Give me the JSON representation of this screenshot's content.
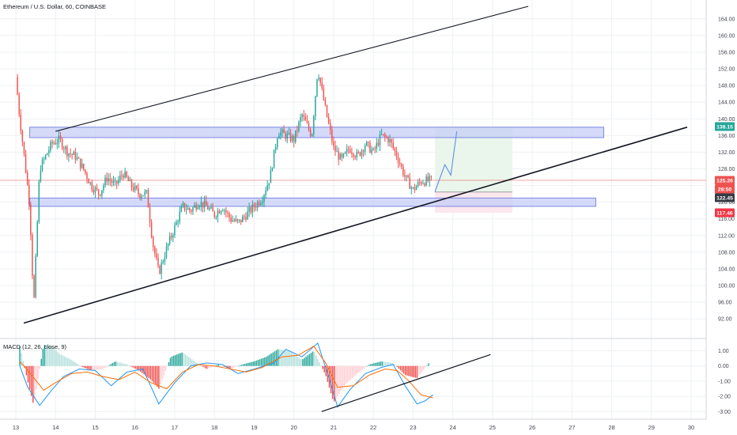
{
  "header": {
    "symbol_line": "Ethereum / U.S. Dollar, 60, COINBASE",
    "macd_label": "MACD (12, 26, close, 9)"
  },
  "chart_data": [
    {
      "type": "candlestick",
      "title": "Ethereum / U.S. Dollar, 60, COINBASE",
      "x_tick_labels": [
        "13",
        "14",
        "15",
        "16",
        "17",
        "18",
        "19",
        "20",
        "21",
        "22",
        "23",
        "24",
        "25",
        "26",
        "27",
        "28",
        "29",
        "30"
      ],
      "y_tick_labels": [
        "92.00",
        "96.00",
        "100.00",
        "104.00",
        "108.00",
        "112.00",
        "116.00",
        "120.00",
        "124.00",
        "128.00",
        "132.00",
        "136.00",
        "140.00",
        "144.00",
        "148.00",
        "152.00",
        "156.00",
        "160.00",
        "164.00"
      ],
      "ylim": [
        89,
        167
      ],
      "grid": true,
      "price_badges": [
        {
          "label": "138.15",
          "value": 138.15,
          "color": "#26a69a"
        },
        {
          "label": "125.26",
          "value": 125.26,
          "color": "#ef5350"
        },
        {
          "label": "28:50",
          "value": 123.9,
          "color": "#ef5350"
        },
        {
          "label": "122.45",
          "value": 122.45,
          "color": "#363a45"
        },
        {
          "label": "117.46",
          "value": 117.46,
          "color": "#f23645"
        }
      ],
      "approx_path": [
        [
          13.0,
          150
        ],
        [
          13.1,
          140
        ],
        [
          13.2,
          132
        ],
        [
          13.35,
          119
        ],
        [
          13.45,
          95
        ],
        [
          13.6,
          128
        ],
        [
          13.75,
          131
        ],
        [
          13.9,
          134
        ],
        [
          14.1,
          135
        ],
        [
          14.3,
          132
        ],
        [
          14.5,
          131
        ],
        [
          14.7,
          128
        ],
        [
          14.9,
          124
        ],
        [
          15.1,
          122
        ],
        [
          15.3,
          126
        ],
        [
          15.5,
          124
        ],
        [
          15.7,
          127
        ],
        [
          15.9,
          124
        ],
        [
          16.1,
          122
        ],
        [
          16.3,
          122
        ],
        [
          16.45,
          110
        ],
        [
          16.6,
          103
        ],
        [
          16.8,
          109
        ],
        [
          17.0,
          114
        ],
        [
          17.2,
          119
        ],
        [
          17.4,
          118
        ],
        [
          17.6,
          120
        ],
        [
          17.8,
          119
        ],
        [
          18.0,
          117
        ],
        [
          18.2,
          119
        ],
        [
          18.4,
          116
        ],
        [
          18.6,
          115
        ],
        [
          18.8,
          117
        ],
        [
          19.0,
          119
        ],
        [
          19.2,
          121
        ],
        [
          19.4,
          126
        ],
        [
          19.6,
          137
        ],
        [
          19.8,
          136
        ],
        [
          20.0,
          135
        ],
        [
          20.2,
          141
        ],
        [
          20.45,
          136
        ],
        [
          20.6,
          152
        ],
        [
          20.8,
          142
        ],
        [
          21.0,
          133
        ],
        [
          21.2,
          130
        ],
        [
          21.4,
          133
        ],
        [
          21.6,
          131
        ],
        [
          21.8,
          134
        ],
        [
          22.0,
          132
        ],
        [
          22.2,
          136
        ],
        [
          22.4,
          135
        ],
        [
          22.6,
          131
        ],
        [
          22.8,
          126
        ],
        [
          23.0,
          123
        ],
        [
          23.2,
          125
        ],
        [
          23.5,
          125.26
        ]
      ],
      "annotations": [
        {
          "type": "channel_upper",
          "from": [
            14.0,
            137
          ],
          "to": [
            25.9,
            167
          ]
        },
        {
          "type": "channel_lower",
          "from": [
            13.2,
            91
          ],
          "to": [
            29.9,
            138
          ]
        },
        {
          "type": "resistance_zone",
          "from_x": 13.35,
          "to_x": 27.8,
          "low": 135.5,
          "high": 138.0
        },
        {
          "type": "support_zone",
          "from_x": 13.35,
          "to_x": 27.6,
          "low": 119.0,
          "high": 121.0
        },
        {
          "type": "long_position",
          "from_x": 23.55,
          "to_x": 25.5,
          "entry": 122.45,
          "target": 138.15,
          "stop": 117.46
        },
        {
          "type": "projection",
          "points": [
            [
              23.55,
              122.45
            ],
            [
              23.8,
              129
            ],
            [
              23.95,
              126.5
            ],
            [
              24.1,
              137
            ]
          ]
        }
      ]
    },
    {
      "type": "bar",
      "title": "MACD (12, 26, close, 9)",
      "y_tick_labels": [
        "1.00",
        "0.00",
        "-1.00",
        "-2.00",
        "-3.00"
      ],
      "ylim": [
        -3.4,
        1.6
      ],
      "approx_histogram": [
        [
          13.1,
          1.3
        ],
        [
          13.3,
          -1.0
        ],
        [
          13.45,
          -2.6
        ],
        [
          13.7,
          1.4
        ],
        [
          13.9,
          1.3
        ],
        [
          14.1,
          0.8
        ],
        [
          14.4,
          0.4
        ],
        [
          14.7,
          -0.1
        ],
        [
          14.9,
          -0.3
        ],
        [
          15.2,
          -0.2
        ],
        [
          15.5,
          0.3
        ],
        [
          15.8,
          0.1
        ],
        [
          16.1,
          -0.3
        ],
        [
          16.4,
          -0.9
        ],
        [
          16.6,
          -1.5
        ],
        [
          16.9,
          0.6
        ],
        [
          17.2,
          0.9
        ],
        [
          17.5,
          0.3
        ],
        [
          17.8,
          -0.2
        ],
        [
          18.1,
          0.1
        ],
        [
          18.4,
          -0.2
        ],
        [
          18.7,
          0.1
        ],
        [
          19.0,
          0.3
        ],
        [
          19.3,
          0.6
        ],
        [
          19.6,
          1.1
        ],
        [
          19.9,
          1.0
        ],
        [
          20.2,
          0.4
        ],
        [
          20.5,
          1.0
        ],
        [
          20.8,
          -0.6
        ],
        [
          21.0,
          -2.4
        ],
        [
          21.3,
          -1.2
        ],
        [
          21.6,
          -0.5
        ],
        [
          21.9,
          0.1
        ],
        [
          22.2,
          0.3
        ],
        [
          22.5,
          0.2
        ],
        [
          22.8,
          -0.6
        ],
        [
          23.1,
          -0.8
        ],
        [
          23.4,
          0.2
        ]
      ],
      "approx_macd_line": [
        [
          13.1,
          0.0
        ],
        [
          13.3,
          -1.4
        ],
        [
          13.6,
          -2.6
        ],
        [
          13.9,
          -1.6
        ],
        [
          14.2,
          -0.7
        ],
        [
          14.6,
          -0.2
        ],
        [
          15.0,
          -0.3
        ],
        [
          15.4,
          -1.3
        ],
        [
          15.8,
          -0.4
        ],
        [
          16.2,
          -0.2
        ],
        [
          16.6,
          -2.5
        ],
        [
          17.0,
          -1.1
        ],
        [
          17.4,
          0.0
        ],
        [
          17.8,
          0.2
        ],
        [
          18.2,
          0.1
        ],
        [
          18.6,
          -0.5
        ],
        [
          19.0,
          -0.2
        ],
        [
          19.5,
          0.2
        ],
        [
          19.8,
          1.1
        ],
        [
          20.2,
          0.6
        ],
        [
          20.6,
          1.5
        ],
        [
          20.9,
          -0.9
        ],
        [
          21.1,
          -2.7
        ],
        [
          21.4,
          -1.6
        ],
        [
          21.8,
          -0.5
        ],
        [
          22.2,
          -0.1
        ],
        [
          22.5,
          0.1
        ],
        [
          22.8,
          -1.3
        ],
        [
          23.1,
          -2.5
        ],
        [
          23.3,
          -2.3
        ],
        [
          23.5,
          -1.9
        ]
      ],
      "approx_signal_line": [
        [
          13.1,
          0.3
        ],
        [
          13.4,
          -0.6
        ],
        [
          13.7,
          -1.6
        ],
        [
          14.0,
          -1.1
        ],
        [
          14.4,
          -0.5
        ],
        [
          14.8,
          -0.4
        ],
        [
          15.2,
          -0.7
        ],
        [
          15.6,
          -0.9
        ],
        [
          16.0,
          -0.4
        ],
        [
          16.4,
          -1.1
        ],
        [
          16.8,
          -1.5
        ],
        [
          17.2,
          -0.4
        ],
        [
          17.6,
          0.1
        ],
        [
          18.0,
          0.0
        ],
        [
          18.4,
          -0.2
        ],
        [
          18.8,
          -0.4
        ],
        [
          19.2,
          -0.1
        ],
        [
          19.7,
          0.6
        ],
        [
          20.1,
          0.7
        ],
        [
          20.5,
          1.3
        ],
        [
          20.8,
          0.2
        ],
        [
          21.1,
          -1.4
        ],
        [
          21.5,
          -1.3
        ],
        [
          21.9,
          -0.6
        ],
        [
          22.3,
          -0.2
        ],
        [
          22.6,
          -0.3
        ],
        [
          22.9,
          -1.0
        ],
        [
          23.2,
          -1.9
        ],
        [
          23.5,
          -2.1
        ]
      ],
      "annotations": [
        {
          "type": "trendline",
          "from": [
            20.7,
            -3.0
          ],
          "to": [
            24.95,
            0.75
          ]
        }
      ]
    }
  ],
  "colors": {
    "bull": "#26a69a",
    "bear": "#ef5350",
    "macd_line": "#2196f3",
    "signal_line": "#ff6d00",
    "zone_fill": "#c5cdf5",
    "zone_stroke": "#7d88e0",
    "grid": "#eef0f3",
    "axis_text": "#434651"
  }
}
